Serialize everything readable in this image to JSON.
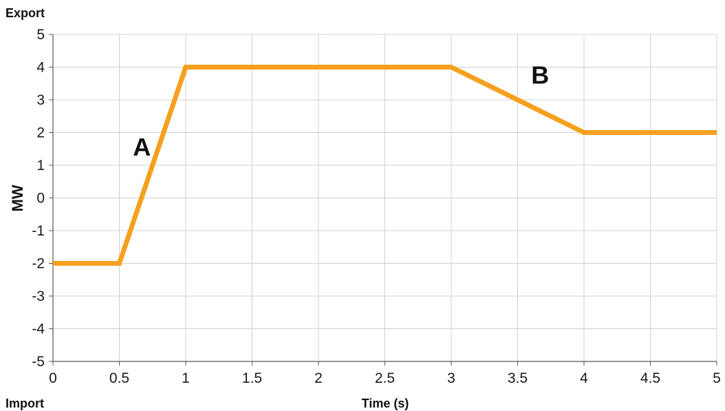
{
  "chart_data": {
    "type": "line",
    "title": "",
    "xlabel": "Time (s)",
    "ylabel": "MW",
    "top_label": "Export",
    "bottom_label": "Import",
    "xlim": [
      0,
      5
    ],
    "ylim": [
      -5,
      5
    ],
    "x_ticks": [
      "0",
      "0.5",
      "1",
      "1.5",
      "2",
      "2.5",
      "3",
      "3.5",
      "4",
      "4.5",
      "5"
    ],
    "y_ticks": [
      "5",
      "4",
      "3",
      "2",
      "1",
      "0",
      "-1",
      "-2",
      "-3",
      "-4",
      "-5"
    ],
    "grid": true,
    "series": [
      {
        "color": "#f5a01e",
        "points": [
          [
            0,
            -2
          ],
          [
            0.5,
            -2
          ],
          [
            1,
            4
          ],
          [
            3,
            4
          ],
          [
            4,
            2
          ],
          [
            5,
            2
          ]
        ]
      }
    ],
    "annotations": [
      {
        "text": "A",
        "x": 0.67,
        "y": 1.3
      },
      {
        "text": "B",
        "x": 3.67,
        "y": 3.5
      }
    ]
  }
}
